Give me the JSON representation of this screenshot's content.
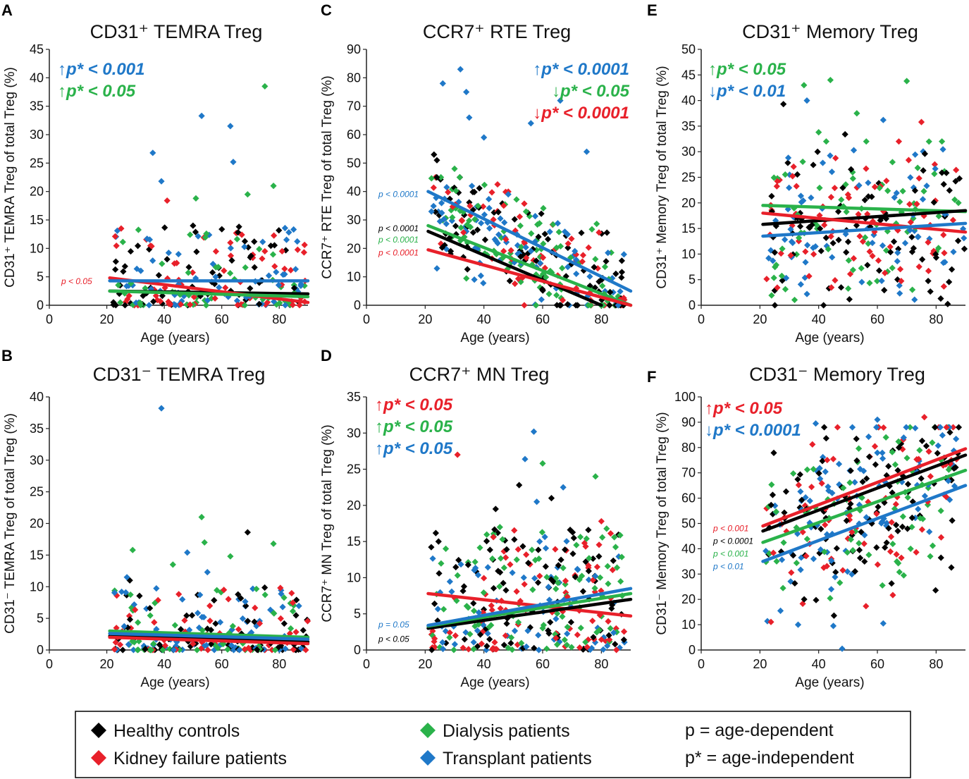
{
  "colors": {
    "Healthy controls": "#000000",
    "Kidney failure patients": "#e8202a",
    "Dialysis patients": "#2ab24a",
    "Transplant patients": "#1f78c8"
  },
  "legend": {
    "items": [
      {
        "label": "Healthy controls",
        "group": "Healthy controls",
        "icon": "diamond-icon"
      },
      {
        "label": "Kidney failure patients",
        "group": "Kidney failure patients",
        "icon": "diamond-icon"
      },
      {
        "label": "Dialysis patients",
        "group": "Dialysis patients",
        "icon": "diamond-icon"
      },
      {
        "label": "Transplant patients",
        "group": "Transplant patients",
        "icon": "diamond-icon"
      }
    ],
    "notes": [
      "p = age-dependent",
      "p* = age-independent"
    ]
  },
  "chart_data": [
    {
      "id": "A",
      "type": "scatter",
      "title": "CD31⁺ TEMRA Treg",
      "xlabel": "Age (years)",
      "ylabel": "CD31⁺ TEMRA Treg of total Treg (%)",
      "xlim": [
        0,
        90
      ],
      "ylim": [
        0,
        45
      ],
      "xticks": [
        0,
        20,
        40,
        60,
        80
      ],
      "yticks": [
        0,
        5,
        10,
        15,
        20,
        25,
        30,
        35,
        40,
        45
      ],
      "stats_big": [
        {
          "text": "↑p* < 0.001",
          "group": "Transplant patients"
        },
        {
          "text": "↑p* < 0.05",
          "group": "Dialysis patients"
        }
      ],
      "stats_small": [
        {
          "text": "p < 0.05",
          "group": "Kidney failure patients",
          "y": 4.2
        }
      ],
      "trend_lines": [
        {
          "group": "Healthy controls",
          "x": [
            21,
            90
          ],
          "y": [
            2.5,
            2.0
          ]
        },
        {
          "group": "Kidney failure patients",
          "x": [
            21,
            90
          ],
          "y": [
            4.8,
            0.5
          ]
        },
        {
          "group": "Dialysis patients",
          "x": [
            21,
            90
          ],
          "y": [
            2.5,
            1.5
          ]
        },
        {
          "group": "Transplant patients",
          "x": [
            21,
            90
          ],
          "y": [
            4.3,
            4.3
          ]
        }
      ],
      "outliers": [
        {
          "group": "Dialysis patients",
          "x": 75,
          "y": 38.5
        },
        {
          "group": "Transplant patients",
          "x": 53,
          "y": 33.3
        },
        {
          "group": "Transplant patients",
          "x": 63,
          "y": 31.5
        },
        {
          "group": "Transplant patients",
          "x": 36,
          "y": 26.8
        },
        {
          "group": "Transplant patients",
          "x": 64,
          "y": 25.2
        },
        {
          "group": "Transplant patients",
          "x": 39,
          "y": 21.8
        },
        {
          "group": "Dialysis patients",
          "x": 78,
          "y": 21
        },
        {
          "group": "Dialysis patients",
          "x": 69,
          "y": 19.5
        },
        {
          "group": "Dialysis patients",
          "x": 51,
          "y": 18.8
        },
        {
          "group": "Kidney failure patients",
          "x": 41,
          "y": 18.4
        },
        {
          "group": "Kidney failure patients",
          "x": 25,
          "y": 13.5
        },
        {
          "group": "Healthy controls",
          "x": 50,
          "y": 14
        },
        {
          "group": "Healthy controls",
          "x": 66,
          "y": 13.8
        },
        {
          "group": "Kidney failure patients",
          "x": 63,
          "y": 11
        },
        {
          "group": "Kidney failure patients",
          "x": 75,
          "y": 9.5
        },
        {
          "group": "Kidney failure patients",
          "x": 81,
          "y": 9.5
        }
      ],
      "cloud": {
        "xmin": 22,
        "xmax": 90,
        "ymin": 0,
        "ymax": 14,
        "n": 240,
        "skew": 2.2
      }
    },
    {
      "id": "B",
      "type": "scatter",
      "title": "CD31⁻ TEMRA Treg",
      "xlabel": "Age (years)",
      "ylabel": "CD31⁻ TEMRA Treg of total Treg (%)",
      "xlim": [
        0,
        90
      ],
      "ylim": [
        0,
        40
      ],
      "xticks": [
        0,
        20,
        40,
        60,
        80
      ],
      "yticks": [
        0,
        5,
        10,
        15,
        20,
        25,
        30,
        35,
        40
      ],
      "stats_big": [],
      "stats_small": [],
      "trend_lines": [
        {
          "group": "Healthy controls",
          "x": [
            21,
            90
          ],
          "y": [
            2.2,
            1.3
          ]
        },
        {
          "group": "Kidney failure patients",
          "x": [
            21,
            90
          ],
          "y": [
            2.0,
            1.0
          ]
        },
        {
          "group": "Dialysis patients",
          "x": [
            21,
            90
          ],
          "y": [
            3.0,
            2.0
          ]
        },
        {
          "group": "Transplant patients",
          "x": [
            21,
            90
          ],
          "y": [
            2.6,
            1.7
          ]
        }
      ],
      "outliers": [
        {
          "group": "Transplant patients",
          "x": 39,
          "y": 38.2
        },
        {
          "group": "Dialysis patients",
          "x": 53,
          "y": 21
        },
        {
          "group": "Healthy controls",
          "x": 69,
          "y": 18.6
        },
        {
          "group": "Dialysis patients",
          "x": 54,
          "y": 17
        },
        {
          "group": "Dialysis patients",
          "x": 78,
          "y": 16.8
        },
        {
          "group": "Dialysis patients",
          "x": 29,
          "y": 15.8
        },
        {
          "group": "Transplant patients",
          "x": 48,
          "y": 15.4
        },
        {
          "group": "Dialysis patients",
          "x": 63,
          "y": 14.8
        },
        {
          "group": "Dialysis patients",
          "x": 43,
          "y": 13.5
        },
        {
          "group": "Transplant patients",
          "x": 55,
          "y": 12.3
        },
        {
          "group": "Healthy controls",
          "x": 28,
          "y": 11
        },
        {
          "group": "Transplant patients",
          "x": 27,
          "y": 11.5
        }
      ],
      "cloud": {
        "xmin": 22,
        "xmax": 90,
        "ymin": 0,
        "ymax": 10,
        "n": 260,
        "skew": 2.4
      }
    },
    {
      "id": "C",
      "type": "scatter",
      "title": "CCR7⁺ RTE Treg",
      "xlabel": "Age (years)",
      "ylabel": "CCR7⁺ RTE Treg of total Treg (%)",
      "xlim": [
        0,
        90
      ],
      "ylim": [
        0,
        90
      ],
      "xticks": [
        0,
        20,
        40,
        60,
        80
      ],
      "yticks": [
        0,
        10,
        20,
        30,
        40,
        50,
        60,
        70,
        80,
        90
      ],
      "stats_big": [
        {
          "text": "↑p* < 0.0001",
          "group": "Transplant patients"
        },
        {
          "text": "↓p* < 0.05",
          "group": "Dialysis patients"
        },
        {
          "text": "↓p* < 0.0001",
          "group": "Kidney failure patients"
        }
      ],
      "stats_small": [
        {
          "text": "p < 0.0001",
          "group": "Transplant patients",
          "y": 39
        },
        {
          "text": "p < 0.0001",
          "group": "Healthy controls",
          "y": 27
        },
        {
          "text": "p < 0.0001",
          "group": "Dialysis patients",
          "y": 23
        },
        {
          "text": "p < 0.0001",
          "group": "Kidney failure patients",
          "y": 18.5
        }
      ],
      "trend_lines": [
        {
          "group": "Transplant patients",
          "x": [
            21,
            90
          ],
          "y": [
            40,
            5
          ]
        },
        {
          "group": "Dialysis patients",
          "x": [
            21,
            90
          ],
          "y": [
            28,
            0
          ]
        },
        {
          "group": "Healthy controls",
          "x": [
            21,
            80
          ],
          "y": [
            26,
            0
          ]
        },
        {
          "group": "Kidney failure patients",
          "x": [
            21,
            90
          ],
          "y": [
            19.5,
            0
          ]
        }
      ],
      "outliers": [
        {
          "group": "Transplant patients",
          "x": 32,
          "y": 83
        },
        {
          "group": "Transplant patients",
          "x": 26,
          "y": 78
        },
        {
          "group": "Transplant patients",
          "x": 34,
          "y": 75
        },
        {
          "group": "Transplant patients",
          "x": 66,
          "y": 72
        },
        {
          "group": "Transplant patients",
          "x": 35,
          "y": 66
        },
        {
          "group": "Transplant patients",
          "x": 56,
          "y": 64
        },
        {
          "group": "Transplant patients",
          "x": 40,
          "y": 59
        },
        {
          "group": "Transplant patients",
          "x": 75,
          "y": 54
        },
        {
          "group": "Healthy controls",
          "x": 23,
          "y": 53
        },
        {
          "group": "Healthy controls",
          "x": 24,
          "y": 51
        },
        {
          "group": "Dialysis patients",
          "x": 30,
          "y": 48
        }
      ],
      "cloud": {
        "xmin": 22,
        "xmax": 88,
        "ymin": 0,
        "ymax": 45,
        "n": 330,
        "skew": 1.0,
        "slope": -0.45
      }
    },
    {
      "id": "D",
      "type": "scatter",
      "title": "CCR7⁺ MN Treg",
      "xlabel": "Age (years)",
      "ylabel": "CCR7⁺ MN Treg of total Treg (%)",
      "xlim": [
        0,
        90
      ],
      "ylim": [
        0,
        35
      ],
      "xticks": [
        0,
        20,
        40,
        60,
        80
      ],
      "yticks": [
        0,
        5,
        10,
        15,
        20,
        25,
        30,
        35
      ],
      "stats_big": [
        {
          "text": "↑p* < 0.05",
          "group": "Kidney failure patients"
        },
        {
          "text": "↑p* < 0.05",
          "group": "Dialysis patients"
        },
        {
          "text": "↑p* < 0.05",
          "group": "Transplant patients"
        }
      ],
      "stats_small": [
        {
          "text": "p = 0.05",
          "group": "Transplant patients",
          "y": 3.5
        },
        {
          "text": "p < 0.05",
          "group": "Healthy controls",
          "y": 1.5
        }
      ],
      "trend_lines": [
        {
          "group": "Kidney failure patients",
          "x": [
            21,
            90
          ],
          "y": [
            7.8,
            4.7
          ]
        },
        {
          "group": "Healthy controls",
          "x": [
            21,
            90
          ],
          "y": [
            3.0,
            7.0
          ]
        },
        {
          "group": "Dialysis patients",
          "x": [
            21,
            90
          ],
          "y": [
            3.3,
            7.8
          ]
        },
        {
          "group": "Transplant patients",
          "x": [
            21,
            90
          ],
          "y": [
            3.4,
            8.5
          ]
        }
      ],
      "outliers": [
        {
          "group": "Transplant patients",
          "x": 57,
          "y": 30.2
        },
        {
          "group": "Kidney failure patients",
          "x": 31,
          "y": 27
        },
        {
          "group": "Transplant patients",
          "x": 54,
          "y": 26.4
        },
        {
          "group": "Dialysis patients",
          "x": 60,
          "y": 25.8
        },
        {
          "group": "Dialysis patients",
          "x": 78,
          "y": 24
        },
        {
          "group": "Healthy controls",
          "x": 52,
          "y": 22.8
        },
        {
          "group": "Transplant patients",
          "x": 67,
          "y": 22.5
        },
        {
          "group": "Healthy controls",
          "x": 63,
          "y": 21
        },
        {
          "group": "Transplant patients",
          "x": 58,
          "y": 20.5
        },
        {
          "group": "Healthy controls",
          "x": 44,
          "y": 19.5
        },
        {
          "group": "Kidney failure patients",
          "x": 80,
          "y": 17.8
        }
      ],
      "cloud": {
        "xmin": 22,
        "xmax": 88,
        "ymin": 0,
        "ymax": 17,
        "n": 340,
        "skew": 1.6
      }
    },
    {
      "id": "E",
      "type": "scatter",
      "title": "CD31⁺ Memory Treg",
      "xlabel": "Age (years)",
      "ylabel": "CD31⁺ Memory Treg of total Treg (%)",
      "xlim": [
        0,
        90
      ],
      "ylim": [
        0,
        50
      ],
      "xticks": [
        0,
        20,
        40,
        60,
        80
      ],
      "yticks": [
        0,
        5,
        10,
        15,
        20,
        25,
        30,
        35,
        40,
        45,
        50
      ],
      "stats_big": [
        {
          "text": "↑p* < 0.05",
          "group": "Dialysis patients"
        },
        {
          "text": "↓p* < 0.01",
          "group": "Transplant patients"
        }
      ],
      "stats_small": [],
      "trend_lines": [
        {
          "group": "Dialysis patients",
          "x": [
            21,
            90
          ],
          "y": [
            19.5,
            18.3
          ]
        },
        {
          "group": "Healthy controls",
          "x": [
            21,
            90
          ],
          "y": [
            15.8,
            18.5
          ]
        },
        {
          "group": "Kidney failure patients",
          "x": [
            21,
            90
          ],
          "y": [
            18.0,
            14.3
          ]
        },
        {
          "group": "Transplant patients",
          "x": [
            21,
            90
          ],
          "y": [
            13.5,
            16.0
          ]
        }
      ],
      "outliers": [
        {
          "group": "Dialysis patients",
          "x": 44,
          "y": 44
        },
        {
          "group": "Dialysis patients",
          "x": 70,
          "y": 43.8
        },
        {
          "group": "Dialysis patients",
          "x": 35,
          "y": 43
        },
        {
          "group": "Transplant patients",
          "x": 36,
          "y": 40
        },
        {
          "group": "Healthy controls",
          "x": 28,
          "y": 39.3
        },
        {
          "group": "Dialysis patients",
          "x": 53,
          "y": 37.5
        },
        {
          "group": "Transplant patients",
          "x": 62,
          "y": 36.2
        },
        {
          "group": "Kidney failure patients",
          "x": 75,
          "y": 35.8
        },
        {
          "group": "Dialysis patients",
          "x": 40,
          "y": 33.8
        },
        {
          "group": "Healthy controls",
          "x": 49,
          "y": 33.4
        }
      ],
      "cloud": {
        "xmin": 22,
        "xmax": 90,
        "ymin": 0,
        "ymax": 32,
        "n": 300,
        "skew": 1.0,
        "center": 16
      }
    },
    {
      "id": "F",
      "type": "scatter",
      "title": "CD31⁻ Memory Treg",
      "xlabel": "Age (years)",
      "ylabel": "CD31⁻ Memory Treg of total Treg (%)",
      "xlim": [
        0,
        90
      ],
      "ylim": [
        0,
        100
      ],
      "xticks": [
        0,
        20,
        40,
        60,
        80
      ],
      "yticks": [
        0,
        10,
        20,
        30,
        40,
        50,
        60,
        70,
        80,
        90,
        100
      ],
      "stats_big": [
        {
          "text": "↑p* < 0.05",
          "group": "Kidney failure patients"
        },
        {
          "text": "↓p* < 0.0001",
          "group": "Transplant patients"
        }
      ],
      "stats_small": [
        {
          "text": "p < 0.001",
          "group": "Kidney failure patients",
          "y": 48
        },
        {
          "text": "p < 0.0001",
          "group": "Healthy controls",
          "y": 43
        },
        {
          "text": "p < 0.001",
          "group": "Dialysis patients",
          "y": 38
        },
        {
          "text": "p < 0.01",
          "group": "Transplant patients",
          "y": 33
        }
      ],
      "trend_lines": [
        {
          "group": "Kidney failure patients",
          "x": [
            21,
            90
          ],
          "y": [
            49,
            79.5
          ]
        },
        {
          "group": "Healthy controls",
          "x": [
            21,
            90
          ],
          "y": [
            47,
            77
          ]
        },
        {
          "group": "Dialysis patients",
          "x": [
            21,
            90
          ],
          "y": [
            42.5,
            71
          ]
        },
        {
          "group": "Transplant patients",
          "x": [
            21,
            90
          ],
          "y": [
            35,
            65
          ]
        }
      ],
      "outliers": [
        {
          "group": "Transplant patients",
          "x": 60,
          "y": 91
        },
        {
          "group": "Kidney failure patients",
          "x": 76,
          "y": 92
        },
        {
          "group": "Transplant patients",
          "x": 39,
          "y": 89.5
        },
        {
          "group": "Transplant patients",
          "x": 48,
          "y": 0.5
        },
        {
          "group": "Transplant patients",
          "x": 33,
          "y": 10
        },
        {
          "group": "Transplant patients",
          "x": 45,
          "y": 9.5
        },
        {
          "group": "Transplant patients",
          "x": 62,
          "y": 10.5
        },
        {
          "group": "Transplant patients",
          "x": 27,
          "y": 15.5
        },
        {
          "group": "Dialysis patients",
          "x": 78,
          "y": 37
        }
      ],
      "cloud": {
        "xmin": 22,
        "xmax": 88,
        "ymin": 15,
        "ymax": 88,
        "n": 340,
        "skew": 1.0,
        "slope": 0.42,
        "center": 55
      }
    }
  ]
}
